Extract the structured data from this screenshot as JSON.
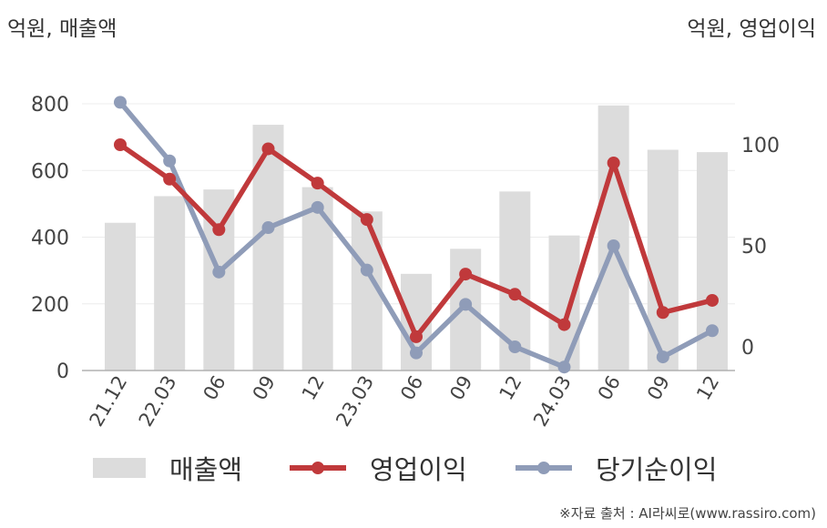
{
  "unit_left": "억원, 매출액",
  "unit_right": "억원, 영업이익",
  "source": "※자료 출처 : AI라씨로(www.rassiro.com)",
  "chart_data": {
    "type": "bar",
    "categories": [
      "21.12",
      "22.03",
      "06",
      "09",
      "12",
      "23.03",
      "06",
      "09",
      "12",
      "24.03",
      "06",
      "09",
      "12"
    ],
    "left_axis": {
      "ylim": [
        0,
        850
      ],
      "ticks": [
        0,
        200,
        400,
        600,
        800
      ],
      "label": "억원, 매출액"
    },
    "right_axis": {
      "ylim": [
        -12,
        133
      ],
      "ticks": [
        0,
        50,
        100
      ],
      "label": "억원, 영업이익"
    },
    "series": [
      {
        "name": "매출액",
        "type": "bar",
        "axis": "left",
        "color": "#dcdcdc",
        "values": [
          443,
          523,
          543,
          737,
          550,
          477,
          290,
          365,
          537,
          405,
          795,
          662,
          655
        ]
      },
      {
        "name": "영업이익",
        "type": "line",
        "axis": "right",
        "color": "#c0393b",
        "values": [
          100,
          83,
          58,
          98,
          81,
          63,
          5,
          36,
          26,
          11,
          91,
          17,
          23
        ]
      },
      {
        "name": "당기순이익",
        "type": "line",
        "axis": "right",
        "color": "#8f9cb8",
        "values": [
          121,
          92,
          37,
          59,
          69,
          38,
          -3,
          21,
          0,
          -10,
          50,
          -5,
          8
        ]
      }
    ],
    "grid": true,
    "legend": "bottom"
  }
}
